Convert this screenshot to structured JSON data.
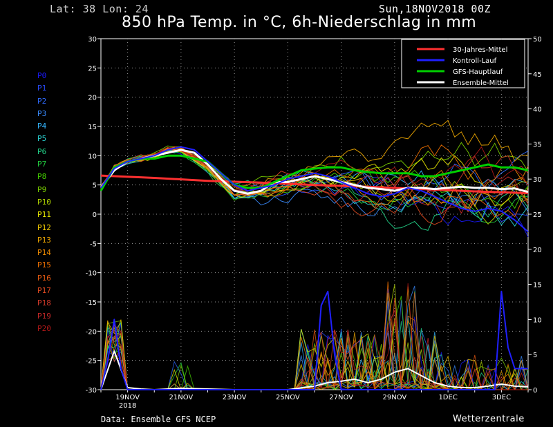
{
  "header": {
    "coords": "Lat: 38 Lon: 24",
    "date": "Sun,18NOV2018 00Z",
    "title": "850 hPa Temp. in °C, 6h-Niederschlag in mm"
  },
  "members": [
    {
      "label": "P0",
      "color": "#1a1aff"
    },
    {
      "label": "P1",
      "color": "#2a4cff"
    },
    {
      "label": "P2",
      "color": "#2f6bff"
    },
    {
      "label": "P3",
      "color": "#3a8cff"
    },
    {
      "label": "P4",
      "color": "#33b5ff"
    },
    {
      "label": "P5",
      "color": "#2ad1d1"
    },
    {
      "label": "P6",
      "color": "#22d48a"
    },
    {
      "label": "P7",
      "color": "#22d040"
    },
    {
      "label": "P8",
      "color": "#44d000"
    },
    {
      "label": "P9",
      "color": "#7ad000"
    },
    {
      "label": "P10",
      "color": "#b2d600"
    },
    {
      "label": "P11",
      "color": "#e6e600"
    },
    {
      "label": "P12",
      "color": "#f0c800"
    },
    {
      "label": "P13",
      "color": "#f0a800"
    },
    {
      "label": "P14",
      "color": "#f08c00"
    },
    {
      "label": "P15",
      "color": "#f07000"
    },
    {
      "label": "P16",
      "color": "#e85a10"
    },
    {
      "label": "P17",
      "color": "#e04a20"
    },
    {
      "label": "P18",
      "color": "#d63a2a"
    },
    {
      "label": "P19",
      "color": "#c82828"
    },
    {
      "label": "P20",
      "color": "#b01818"
    }
  ],
  "chart_data": {
    "type": "line",
    "grid": true,
    "legend_position": "top-right",
    "x_ticks": [
      "19NOV",
      "21NOV",
      "23NOV",
      "25NOV",
      "27NOV",
      "29NOV",
      "1DEC",
      "3DEC"
    ],
    "x_year_label": "2018",
    "x_range": [
      "2018-11-18 00Z",
      "2018-12-04 00Z"
    ],
    "left_axis": {
      "ylim": [
        -30,
        30
      ],
      "ticks": [
        30,
        25,
        20,
        15,
        10,
        5,
        0,
        -5,
        -10,
        -15,
        -20,
        -25,
        -30
      ]
    },
    "right_axis": {
      "ylim": [
        0,
        50
      ],
      "ticks": [
        50,
        45,
        40,
        35,
        30,
        25,
        20,
        15,
        10,
        5,
        0
      ]
    },
    "legend": [
      {
        "label": "30-Jahres-Mittel",
        "color": "#ff3030"
      },
      {
        "label": "Kontroll-Lauf",
        "color": "#2020ff"
      },
      {
        "label": "GFS-Hauptlauf",
        "color": "#00d000"
      },
      {
        "label": "Ensemble-Mittel",
        "color": "#ffffff"
      }
    ],
    "series": [
      {
        "name": "30-Jahres-Mittel",
        "axis": "left",
        "color": "#ff3030",
        "x": [
          "2018-11-18 00Z",
          "2018-11-20 00Z",
          "2018-11-22 00Z",
          "2018-11-24 00Z",
          "2018-11-26 00Z",
          "2018-11-28 00Z",
          "2018-11-30 00Z",
          "2018-12-02 00Z",
          "2018-12-04 00Z"
        ],
        "values": [
          6.6,
          6.2,
          5.7,
          5.4,
          5.0,
          4.7,
          4.3,
          3.9,
          3.6
        ]
      },
      {
        "name": "Ensemble-Mittel",
        "axis": "left",
        "color": "#ffffff",
        "x": [
          "2018-11-18 00Z",
          "2018-11-18 12Z",
          "2018-11-19 00Z",
          "2018-11-19 12Z",
          "2018-11-20 00Z",
          "2018-11-20 12Z",
          "2018-11-21 00Z",
          "2018-11-21 12Z",
          "2018-11-22 00Z",
          "2018-11-22 12Z",
          "2018-11-23 00Z",
          "2018-11-23 12Z",
          "2018-11-24 00Z",
          "2018-11-24 12Z",
          "2018-11-25 00Z",
          "2018-11-25 12Z",
          "2018-11-26 00Z",
          "2018-11-26 12Z",
          "2018-11-27 00Z",
          "2018-11-27 12Z",
          "2018-11-28 00Z",
          "2018-11-28 12Z",
          "2018-11-29 00Z",
          "2018-11-29 12Z",
          "2018-11-30 00Z",
          "2018-11-30 12Z",
          "2018-12-01 00Z",
          "2018-12-01 12Z",
          "2018-12-02 00Z",
          "2018-12-02 12Z",
          "2018-12-03 00Z",
          "2018-12-03 12Z",
          "2018-12-04 00Z"
        ],
        "values": [
          4.5,
          7.5,
          9,
          9.5,
          10,
          10.5,
          11,
          10.5,
          8.5,
          6,
          4,
          3.5,
          4,
          5.5,
          5.5,
          6,
          6.5,
          6,
          5.5,
          5,
          4.5,
          4.3,
          4,
          4.5,
          4.5,
          4.3,
          4.5,
          4.7,
          4.5,
          4.5,
          4.3,
          4.4,
          3.8
        ]
      },
      {
        "name": "GFS-Hauptlauf",
        "axis": "left",
        "color": "#00d000",
        "x": [
          "2018-11-18 00Z",
          "2018-11-18 12Z",
          "2018-11-19 00Z",
          "2018-11-19 12Z",
          "2018-11-20 00Z",
          "2018-11-20 12Z",
          "2018-11-21 00Z",
          "2018-11-21 12Z",
          "2018-11-22 00Z",
          "2018-11-22 12Z",
          "2018-11-23 00Z",
          "2018-11-23 12Z",
          "2018-11-24 00Z",
          "2018-11-24 12Z",
          "2018-11-25 00Z",
          "2018-11-25 12Z",
          "2018-11-26 00Z",
          "2018-11-26 12Z",
          "2018-11-27 00Z",
          "2018-11-27 12Z",
          "2018-11-28 00Z",
          "2018-11-28 12Z",
          "2018-11-29 00Z",
          "2018-11-29 12Z",
          "2018-11-30 00Z",
          "2018-11-30 12Z",
          "2018-12-01 00Z",
          "2018-12-01 12Z",
          "2018-12-02 00Z",
          "2018-12-02 12Z",
          "2018-12-03 00Z",
          "2018-12-03 12Z",
          "2018-12-04 00Z"
        ],
        "values": [
          4,
          8,
          9,
          9.5,
          9.5,
          10,
          10,
          9.5,
          9,
          7,
          5,
          4.5,
          4.5,
          5.5,
          6.5,
          7.5,
          7.8,
          8,
          8,
          7.5,
          7.2,
          7,
          7,
          7,
          6.5,
          6.5,
          7,
          7.5,
          8,
          8.5,
          8,
          8,
          7.5
        ]
      },
      {
        "name": "Kontroll-Lauf",
        "axis": "left",
        "color": "#2020ff",
        "x": [
          "2018-11-18 00Z",
          "2018-11-18 12Z",
          "2018-11-19 00Z",
          "2018-11-19 12Z",
          "2018-11-20 00Z",
          "2018-11-20 12Z",
          "2018-11-21 00Z",
          "2018-11-21 12Z",
          "2018-11-22 00Z",
          "2018-11-22 12Z",
          "2018-11-23 00Z",
          "2018-11-23 12Z",
          "2018-11-24 00Z",
          "2018-11-24 12Z",
          "2018-11-25 00Z",
          "2018-11-25 12Z",
          "2018-11-26 00Z",
          "2018-11-26 12Z",
          "2018-11-27 00Z",
          "2018-11-27 12Z",
          "2018-11-28 00Z",
          "2018-11-28 12Z",
          "2018-11-29 00Z",
          "2018-11-29 12Z",
          "2018-11-30 00Z",
          "2018-11-30 12Z",
          "2018-12-01 00Z",
          "2018-12-01 12Z",
          "2018-12-02 00Z",
          "2018-12-02 12Z",
          "2018-12-03 00Z",
          "2018-12-03 12Z",
          "2018-12-04 00Z"
        ],
        "values": [
          4.5,
          7.8,
          9,
          9.5,
          10,
          11,
          11.5,
          11,
          9,
          7,
          5,
          4,
          4.5,
          5,
          6,
          6.5,
          7,
          6.5,
          5.5,
          4.5,
          3.5,
          3,
          3.5,
          4.5,
          4,
          3,
          2,
          1,
          0.5,
          1,
          0.5,
          -1,
          -3
        ]
      },
      {
        "name": "Ensemble-Mittel Niederschlag",
        "axis": "right",
        "color": "#ffffff",
        "x": [
          "2018-11-18 00Z",
          "2018-11-18 12Z",
          "2018-11-19 00Z",
          "2018-11-19 12Z",
          "2018-11-20 00Z",
          "2018-11-21 00Z",
          "2018-11-22 00Z",
          "2018-11-23 00Z",
          "2018-11-24 00Z",
          "2018-11-25 00Z",
          "2018-11-26 00Z",
          "2018-11-26 12Z",
          "2018-11-27 00Z",
          "2018-11-27 12Z",
          "2018-11-28 00Z",
          "2018-11-28 12Z",
          "2018-11-29 00Z",
          "2018-11-29 12Z",
          "2018-11-30 00Z",
          "2018-11-30 12Z",
          "2018-12-01 00Z",
          "2018-12-01 12Z",
          "2018-12-02 00Z",
          "2018-12-02 12Z",
          "2018-12-03 00Z",
          "2018-12-03 12Z",
          "2018-12-04 00Z"
        ],
        "values": [
          0,
          5.5,
          0.3,
          0.1,
          0,
          0.2,
          0.1,
          0,
          0,
          0,
          0.5,
          1,
          1.2,
          1.5,
          1,
          1.5,
          2.5,
          3,
          2,
          1,
          0.5,
          0.3,
          0.3,
          0.5,
          0.8,
          0.5,
          0.4
        ]
      },
      {
        "name": "Kontroll-Lauf Niederschlag",
        "axis": "right",
        "color": "#2020ff",
        "x": [
          "2018-11-18 00Z",
          "2018-11-18 06Z",
          "2018-11-18 12Z",
          "2018-11-18 18Z",
          "2018-11-19 00Z",
          "2018-11-26 00Z",
          "2018-11-26 06Z",
          "2018-11-26 12Z",
          "2018-11-26 18Z",
          "2018-11-27 00Z",
          "2018-12-02 18Z",
          "2018-12-03 00Z",
          "2018-12-03 06Z",
          "2018-12-03 12Z",
          "2018-12-04 00Z"
        ],
        "values": [
          0,
          4,
          10,
          3,
          0,
          0,
          12,
          14,
          5,
          0,
          0,
          14,
          6,
          3,
          3
        ]
      }
    ]
  }
}
